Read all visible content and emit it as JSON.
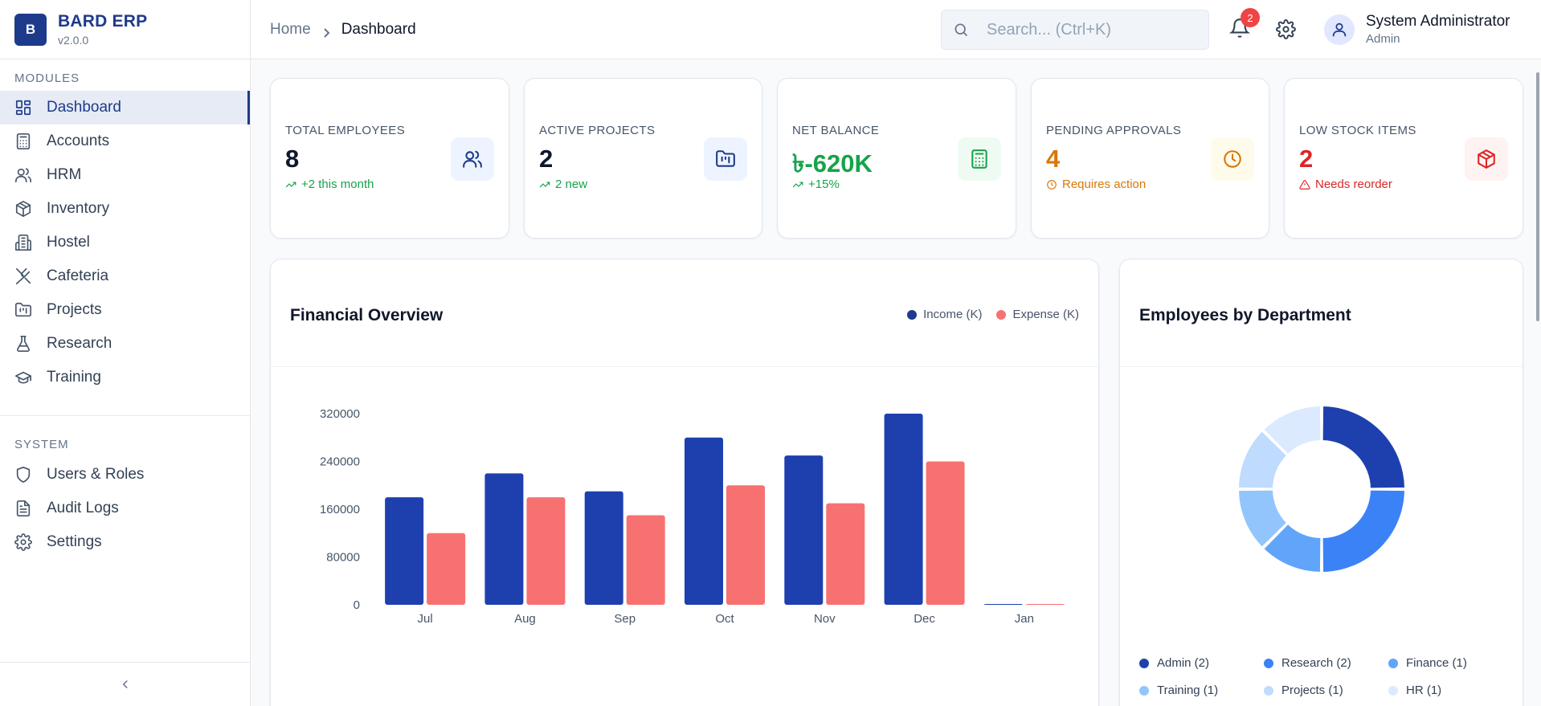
{
  "brand": {
    "logo_letter": "B",
    "name": "BARD ERP",
    "version": "v2.0.0"
  },
  "sidebar": {
    "modules_title": "MODULES",
    "modules": [
      {
        "label": "Dashboard",
        "icon": "layout-dashboard-icon",
        "active": true
      },
      {
        "label": "Accounts",
        "icon": "calculator-icon"
      },
      {
        "label": "HRM",
        "icon": "users-icon"
      },
      {
        "label": "Inventory",
        "icon": "package-icon"
      },
      {
        "label": "Hostel",
        "icon": "building-icon"
      },
      {
        "label": "Cafeteria",
        "icon": "utensils-icon"
      },
      {
        "label": "Projects",
        "icon": "folder-kanban-icon"
      },
      {
        "label": "Research",
        "icon": "flask-icon"
      },
      {
        "label": "Training",
        "icon": "graduation-cap-icon"
      }
    ],
    "system_title": "SYSTEM",
    "system": [
      {
        "label": "Users & Roles",
        "icon": "shield-icon"
      },
      {
        "label": "Audit Logs",
        "icon": "file-text-icon"
      },
      {
        "label": "Settings",
        "icon": "gear-icon"
      }
    ],
    "collapse_icon": "chevron-left-icon"
  },
  "header": {
    "breadcrumb": {
      "home": "Home",
      "current": "Dashboard"
    },
    "search_placeholder": "Search... (Ctrl+K)",
    "notification_count": "2",
    "user": {
      "name": "System Administrator",
      "role": "Admin"
    }
  },
  "stats": [
    {
      "label": "TOTAL EMPLOYEES",
      "value": "8",
      "sub": "+2 this month",
      "value_color": "#0f172a",
      "sub_color": "#16a34a",
      "icon": "users-icon",
      "icon_color": "#1e3a8a",
      "icon_bg": "#eef4ff"
    },
    {
      "label": "ACTIVE PROJECTS",
      "value": "2",
      "sub": "2 new",
      "value_color": "#0f172a",
      "sub_color": "#16a34a",
      "icon": "folder-kanban-icon",
      "icon_color": "#1e3a8a",
      "icon_bg": "#eef4ff"
    },
    {
      "label": "NET BALANCE",
      "value": "৳-620K",
      "sub": "+15%",
      "value_color": "#16a34a",
      "sub_color": "#16a34a",
      "icon": "calculator-icon",
      "icon_color": "#16a34a",
      "icon_bg": "#effaf3"
    },
    {
      "label": "PENDING APPROVALS",
      "value": "4",
      "sub": "Requires action",
      "value_color": "#d97706",
      "sub_color": "#d97706",
      "icon": "clock-icon",
      "icon_color": "#d97706",
      "icon_bg": "#fffbeb"
    },
    {
      "label": "LOW STOCK ITEMS",
      "value": "2",
      "sub": "Needs reorder",
      "value_color": "#dc2626",
      "sub_color": "#dc2626",
      "icon": "package-icon",
      "icon_color": "#dc2626",
      "icon_bg": "#fef2f2"
    }
  ],
  "financial": {
    "title": "Financial Overview",
    "legend": [
      "Income (K)",
      "Expense (K)"
    ]
  },
  "departments": {
    "title": "Employees by Department"
  },
  "chart_data": [
    {
      "type": "bar",
      "title": "Financial Overview",
      "categories": [
        "Jul",
        "Aug",
        "Sep",
        "Oct",
        "Nov",
        "Dec",
        "Jan"
      ],
      "series": [
        {
          "name": "Income (K)",
          "color": "#1e40af",
          "values": [
            180000,
            220000,
            190000,
            280000,
            250000,
            320000,
            0
          ]
        },
        {
          "name": "Expense (K)",
          "color": "#f87171",
          "values": [
            120000,
            180000,
            150000,
            200000,
            170000,
            240000,
            0
          ]
        }
      ],
      "yticks": [
        0,
        80000,
        160000,
        240000,
        320000
      ],
      "ylim": [
        0,
        320000
      ]
    },
    {
      "type": "pie",
      "title": "Employees by Department",
      "labels": [
        "Admin (2)",
        "Research (2)",
        "Finance (1)",
        "Training (1)",
        "Projects (1)",
        "HR (1)"
      ],
      "values": [
        2,
        2,
        1,
        1,
        1,
        1
      ],
      "colors": [
        "#1e40af",
        "#3b82f6",
        "#60a5fa",
        "#93c5fd",
        "#bfdbfe",
        "#dbeafe"
      ]
    }
  ]
}
